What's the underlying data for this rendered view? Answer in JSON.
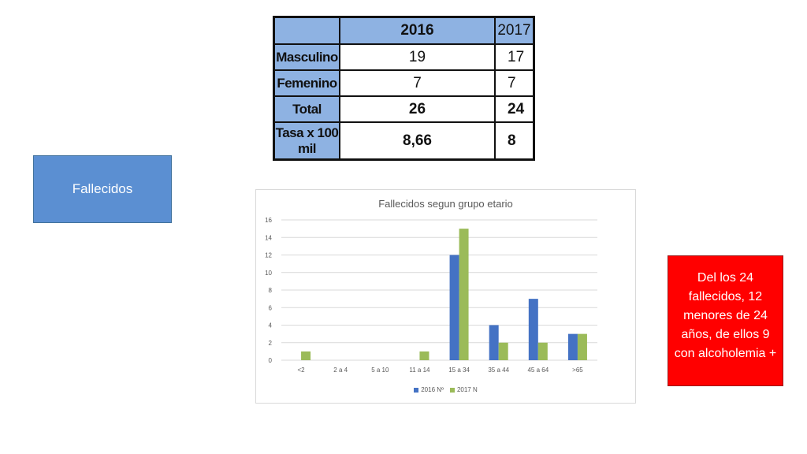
{
  "table": {
    "header": [
      "",
      "2016",
      "2017"
    ],
    "rows": [
      {
        "label": "Masculino",
        "v2016": "19",
        "v2017": "17"
      },
      {
        "label": "Femenino",
        "v2016": "7",
        "v2017": "7"
      },
      {
        "label": "Total",
        "v2016": "26",
        "v2017": "24"
      },
      {
        "label": "Tasa x 100 mil",
        "v2016": "8,66",
        "v2017": "8"
      }
    ]
  },
  "left_box": {
    "label": "Fallecidos"
  },
  "note_box": {
    "text": "Del los 24 fallecidos, 12 menores de 24 años, de ellos 9 con alcoholemia +"
  },
  "colors": {
    "table_header": "#8eb2e2",
    "left_box": "#5b8fd2",
    "note_box": "#ff0000",
    "series_2016": "#4472c4",
    "series_2017": "#9bbb59"
  },
  "chart_data": {
    "type": "bar",
    "title": "Fallecidos segun grupo etario",
    "xlabel": "",
    "ylabel": "",
    "ylim": [
      0,
      16
    ],
    "yticks": [
      0,
      2,
      4,
      6,
      8,
      10,
      12,
      14,
      16
    ],
    "categories": [
      "<2",
      "2 a 4",
      "5 a 10",
      "11 a 14",
      "15 a 34",
      "35 a 44",
      "45 a 64",
      ">65"
    ],
    "series": [
      {
        "name": "2016 Nº",
        "color": "#4472c4",
        "values": [
          0,
          0,
          0,
          0,
          12,
          4,
          7,
          3
        ]
      },
      {
        "name": "2017 N",
        "color": "#9bbb59",
        "values": [
          1,
          0,
          0,
          1,
          15,
          2,
          2,
          3
        ]
      }
    ],
    "grid": true,
    "legend": "bottom"
  }
}
